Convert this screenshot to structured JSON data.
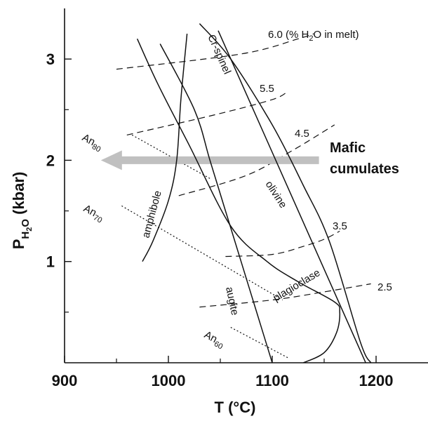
{
  "chart_data": {
    "type": "line",
    "xlabel": "T (°C)",
    "ylabel_main": "P",
    "ylabel_sub_main": "H",
    "ylabel_sub_sub": "2",
    "ylabel_sub_tail": "O",
    "ylabel_tail": " (kbar)",
    "xlim": [
      900,
      1250
    ],
    "ylim": [
      0,
      3.5
    ],
    "x_ticks": [
      900,
      1000,
      1100,
      1200
    ],
    "x_minor_ticks": [
      950,
      1050,
      1150
    ],
    "y_ticks": [
      1,
      2,
      3
    ],
    "y_minor_ticks": [
      0.5,
      1.5,
      2.5
    ],
    "grid": false,
    "phase_boundaries": [
      {
        "name": "Cr-spinel",
        "points": [
          [
            1048,
            3.28
          ],
          [
            1190,
            0
          ]
        ]
      },
      {
        "name": "olivine",
        "points": [
          [
            1030,
            3.35
          ],
          [
            1060,
            3.0
          ],
          [
            1100,
            2.35
          ],
          [
            1130,
            1.75
          ],
          [
            1155,
            1.2
          ],
          [
            1185,
            0.2
          ],
          [
            1195,
            0
          ]
        ]
      },
      {
        "name": "amphibole",
        "points": [
          [
            975,
            1.0
          ],
          [
            985,
            1.2
          ],
          [
            1000,
            1.6
          ],
          [
            1008,
            2.0
          ],
          [
            1012,
            2.6
          ],
          [
            1018,
            3.25
          ]
        ]
      },
      {
        "name": "augite",
        "points": [
          [
            992,
            3.15
          ],
          [
            1025,
            2.5
          ],
          [
            1040,
            2.0
          ],
          [
            1055,
            1.5
          ],
          [
            1070,
            1.0
          ],
          [
            1085,
            0.5
          ],
          [
            1100,
            0
          ]
        ]
      },
      {
        "name": "plagioclase",
        "points": [
          [
            970,
            3.2
          ],
          [
            990,
            2.75
          ],
          [
            1020,
            2.15
          ],
          [
            1060,
            1.35
          ],
          [
            1095,
            1.0
          ],
          [
            1125,
            0.8
          ],
          [
            1160,
            0.6
          ],
          [
            1165,
            0.5
          ],
          [
            1162,
            0.3
          ],
          [
            1150,
            0.1
          ],
          [
            1130,
            0
          ]
        ]
      }
    ],
    "isopleths": [
      {
        "label": "6.0 (% H",
        "label_sub": "2",
        "label_tail": "O in melt)",
        "points": [
          [
            950,
            2.9
          ],
          [
            1070,
            3.05
          ],
          [
            1125,
            3.2
          ],
          [
            1140,
            3.25
          ]
        ]
      },
      {
        "label": "5.5",
        "points": [
          [
            960,
            2.25
          ],
          [
            1045,
            2.45
          ],
          [
            1100,
            2.6
          ],
          [
            1115,
            2.68
          ]
        ]
      },
      {
        "label": "4.5",
        "points": [
          [
            1010,
            1.65
          ],
          [
            1075,
            1.85
          ],
          [
            1120,
            2.1
          ],
          [
            1160,
            2.35
          ]
        ]
      },
      {
        "label": "3.5",
        "points": [
          [
            1055,
            1.05
          ],
          [
            1100,
            1.07
          ],
          [
            1130,
            1.15
          ],
          [
            1150,
            1.22
          ],
          [
            1165,
            1.3
          ]
        ]
      },
      {
        "label": "2.5",
        "points": [
          [
            1030,
            0.55
          ],
          [
            1100,
            0.62
          ],
          [
            1150,
            0.7
          ],
          [
            1195,
            0.78
          ]
        ]
      }
    ],
    "anorthite_lines": [
      {
        "label": "An",
        "label_sub": "80",
        "points": [
          [
            965,
            2.25
          ],
          [
            1040,
            1.82
          ]
        ]
      },
      {
        "label": "An",
        "label_sub": "70",
        "points": [
          [
            955,
            1.55
          ],
          [
            1110,
            0.62
          ]
        ]
      },
      {
        "label": "An",
        "label_sub": "60",
        "points": [
          [
            1060,
            0.35
          ],
          [
            1115,
            0.05
          ]
        ]
      }
    ],
    "arrow": {
      "from": [
        1145,
        2.0
      ],
      "to": [
        935,
        2.0
      ],
      "color": "#c0c0c0",
      "label_line1": "Mafic",
      "label_line2": "cumulates"
    }
  }
}
